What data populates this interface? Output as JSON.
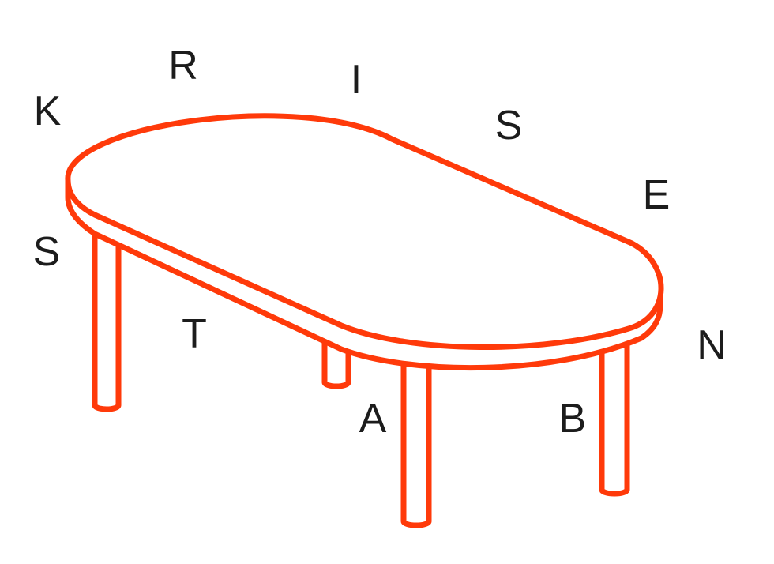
{
  "colors": {
    "outline": "#ff3a0a",
    "letter": "#1c1c1c",
    "background": "#ffffff"
  },
  "illustration": {
    "icon": "oval-table-icon"
  },
  "letters": [
    "K",
    "R",
    "I",
    "S",
    "E",
    "S",
    "T",
    "A",
    "B",
    "N"
  ]
}
